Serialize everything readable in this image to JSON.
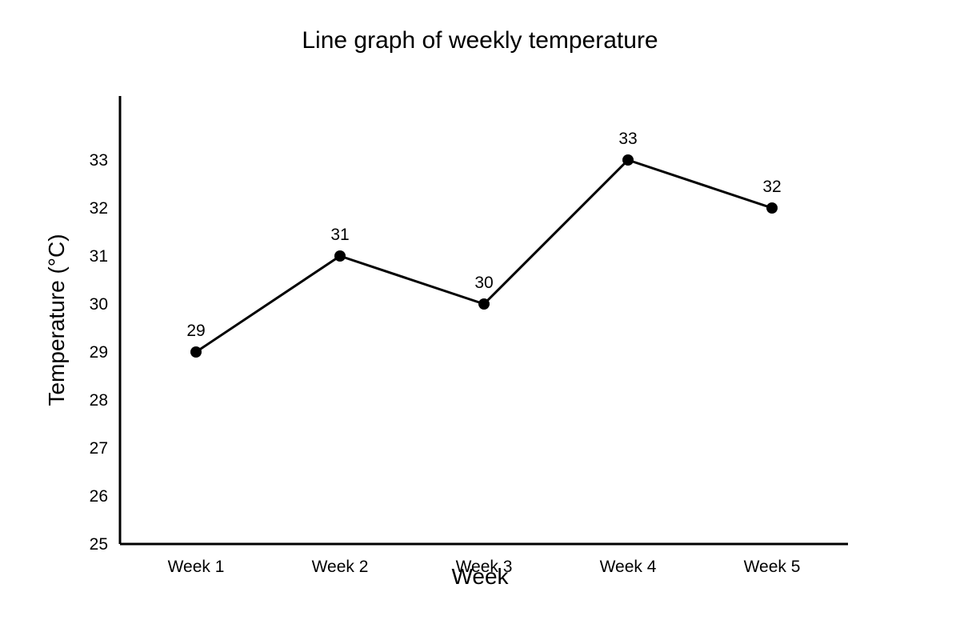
{
  "chart_data": {
    "type": "line",
    "title": "Line graph of weekly temperature",
    "xlabel": "Week",
    "ylabel": "Temperature (°C)",
    "categories": [
      "Week 1",
      "Week 2",
      "Week 3",
      "Week 4",
      "Week 5"
    ],
    "values": [
      29,
      31,
      30,
      33,
      32
    ],
    "data_labels": [
      "29",
      "31",
      "30",
      "33",
      "32"
    ],
    "y_ticks": [
      25,
      26,
      27,
      28,
      29,
      30,
      31,
      32,
      33
    ],
    "ylim": [
      25,
      33
    ],
    "grid": false,
    "line_color": "#000000",
    "marker_color": "#000000"
  }
}
